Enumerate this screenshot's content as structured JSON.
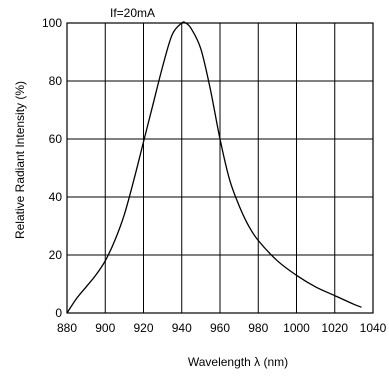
{
  "chart_data": {
    "type": "line",
    "annotation": "If=20mA",
    "xlabel": "Wavelength λ (nm)",
    "ylabel": "Relative Radiant Intensity  (%)",
    "xlim": [
      880,
      1040
    ],
    "ylim": [
      0,
      100
    ],
    "x_ticks": [
      "880",
      "900",
      "920",
      "940",
      "960",
      "980",
      "1000",
      "1020",
      "1040"
    ],
    "y_ticks": [
      "0",
      "20",
      "40",
      "60",
      "80",
      "100"
    ],
    "grid": true,
    "colors": {
      "line": "#000000",
      "grid": "#000000",
      "background": "#ffffff"
    },
    "series": [
      {
        "x": [
          880,
          885,
          890,
          895,
          900,
          905,
          910,
          915,
          920,
          925,
          930,
          935,
          940,
          942,
          945,
          950,
          955,
          960,
          965,
          970,
          975,
          980,
          990,
          1000,
          1010,
          1020,
          1030,
          1034
        ],
        "y": [
          0,
          5,
          9,
          13,
          18,
          25,
          34,
          46,
          59,
          72,
          85,
          96,
          100,
          100,
          98,
          91,
          77,
          60,
          46,
          37,
          30,
          25,
          18,
          13,
          9,
          6,
          3,
          2
        ]
      }
    ]
  }
}
